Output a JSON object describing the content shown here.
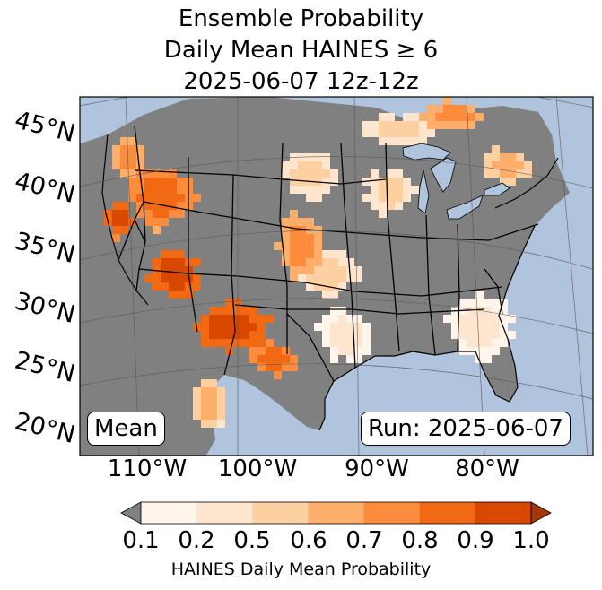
{
  "title": {
    "line1": "Ensemble Probability",
    "line2": "Daily Mean HAINES ≥ 6",
    "line3": "2025-06-07 12z-12z"
  },
  "map": {
    "region": "Contiguous United States",
    "lat_labels": [
      "45°N",
      "40°N",
      "35°N",
      "30°N",
      "25°N",
      "20°N"
    ],
    "lon_labels": [
      "110°W",
      "100°W",
      "90°W",
      "80°W"
    ],
    "colors": {
      "ocean": "#b0c4de",
      "below_threshold": "#808080",
      "border": "#000000",
      "gridline": "#555555"
    }
  },
  "boxes": {
    "mean": "Mean",
    "run": "Run: 2025-06-07"
  },
  "colorbar": {
    "label": "HAINES Daily Mean Probability",
    "ticks": [
      "0.1",
      "0.2",
      "0.5",
      "0.6",
      "0.7",
      "0.8",
      "0.9",
      "1.0"
    ],
    "under_color": "#808080",
    "colors": [
      "#fff5eb",
      "#fee6ce",
      "#fdd0a2",
      "#fdae6b",
      "#fd8d3c",
      "#f16913",
      "#d94801"
    ],
    "over_color": "#a63603"
  }
}
